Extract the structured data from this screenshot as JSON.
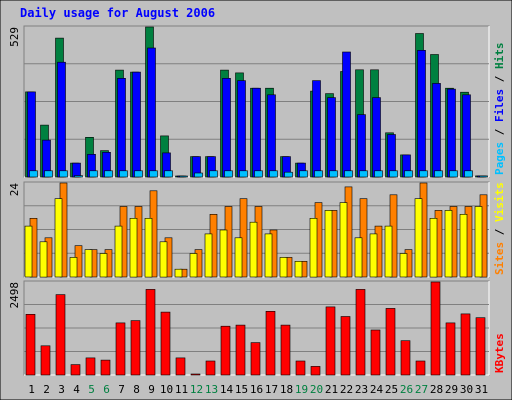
{
  "chart_data": {
    "type": "bar",
    "title": "Daily usage for August 2006",
    "categories": [
      "1",
      "2",
      "3",
      "4",
      "5",
      "6",
      "7",
      "8",
      "9",
      "10",
      "11",
      "12",
      "13",
      "14",
      "15",
      "16",
      "17",
      "18",
      "19",
      "20",
      "21",
      "22",
      "23",
      "24",
      "25",
      "26",
      "27",
      "28",
      "29",
      "30",
      "31"
    ],
    "weekend_days": [
      "5",
      "6",
      "12",
      "13",
      "19",
      "20",
      "26",
      "27"
    ],
    "panels": [
      {
        "name": "pages-files-hits",
        "max_label": "529",
        "ylim": [
          0,
          529
        ],
        "side_label": [
          "Pages",
          "Files",
          "Hits"
        ],
        "series": [
          {
            "name": "Hits",
            "color": "#008040",
            "values": [
              300,
              183,
              490,
              49,
              140,
              93,
              377,
              370,
              529,
              145,
              2,
              72,
              72,
              377,
              367,
              313,
              313,
              72,
              49,
              303,
              294,
              372,
              378,
              378,
              156,
              78,
              506,
              432,
              313,
              299,
              4
            ]
          },
          {
            "name": "Files",
            "color": "#0000ff",
            "values": [
              300,
              130,
              405,
              49,
              80,
              87,
              348,
              370,
              455,
              85,
              2,
              72,
              72,
              348,
              340,
              313,
              290,
              72,
              49,
              340,
              280,
              441,
              220,
              280,
              150,
              78,
              447,
              330,
              310,
              290,
              4
            ]
          },
          {
            "name": "Pages",
            "color": "#00c0ff",
            "values": [
              22,
              22,
              22,
              5,
              22,
              22,
              22,
              22,
              22,
              22,
              2,
              14,
              22,
              22,
              22,
              22,
              22,
              17,
              22,
              22,
              22,
              22,
              22,
              22,
              22,
              22,
              22,
              22,
              22,
              22,
              4
            ]
          }
        ]
      },
      {
        "name": "sites-visits",
        "max_label": "24",
        "ylim": [
          0,
          24
        ],
        "side_label": [
          "Sites",
          "Visits"
        ],
        "series": [
          {
            "name": "Visits",
            "color": "#ff8000",
            "values": [
              15,
              10,
              24,
              8,
              7,
              7,
              18,
              18,
              22,
              10,
              2,
              7,
              16,
              18,
              20,
              18,
              12,
              5,
              4,
              19,
              17,
              23,
              20,
              13,
              21,
              7,
              24,
              17,
              18,
              18,
              21
            ]
          },
          {
            "name": "Sites",
            "color": "#ffff00",
            "values": [
              13,
              9,
              20,
              5,
              7,
              6,
              13,
              15,
              15,
              9,
              2,
              6,
              11,
              12,
              10,
              14,
              11,
              5,
              4,
              15,
              17,
              19,
              10,
              11,
              13,
              6,
              20,
              15,
              17,
              16,
              18
            ]
          }
        ]
      },
      {
        "name": "kbytes",
        "max_label": "2498",
        "ylim": [
          0,
          2498
        ],
        "side_label": [
          "KBytes"
        ],
        "series": [
          {
            "name": "KBytes",
            "color": "#ff0000",
            "values": [
              1630,
              785,
              2160,
              280,
              460,
              400,
              1400,
              1460,
              2300,
              1690,
              460,
              0,
              375,
              1310,
              1340,
              870,
              1710,
              1340,
              375,
              230,
              1830,
              1570,
              2300,
              1210,
              1790,
              920,
              375,
              2498,
              1400,
              1640,
              1540
            ]
          }
        ]
      }
    ]
  }
}
